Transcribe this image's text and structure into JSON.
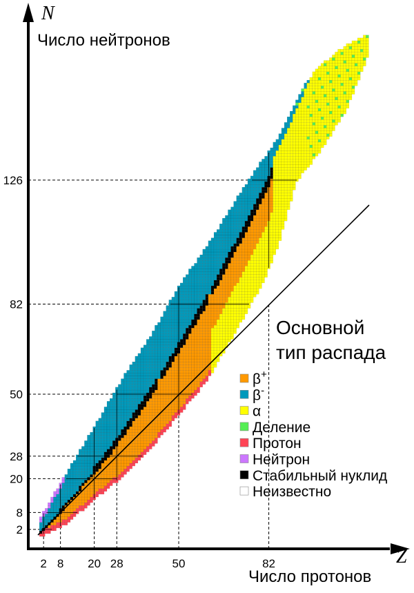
{
  "axes": {
    "y_symbol": "N",
    "y_label": "Число нейтронов",
    "x_symbol": "Z",
    "x_label": "Число протонов",
    "magic_numbers_z": [
      "2",
      "8",
      "20",
      "28",
      "50",
      "82"
    ],
    "magic_numbers_n": [
      "2",
      "8",
      "20",
      "28",
      "50",
      "82",
      "126"
    ]
  },
  "legend": {
    "title_line1": "Основной",
    "title_line2": "тип распада",
    "items": [
      {
        "label": "β",
        "sup": "+",
        "color": "#ff9900"
      },
      {
        "label": "β",
        "sup": "-",
        "color": "#0099bb"
      },
      {
        "label": "α",
        "sup": "",
        "color": "#ffff00"
      },
      {
        "label": "Деление",
        "sup": "",
        "color": "#55ee55"
      },
      {
        "label": "Протон",
        "sup": "",
        "color": "#ff4455"
      },
      {
        "label": "Нейтрон",
        "sup": "",
        "color": "#cc77ff"
      },
      {
        "label": "Стабильный нуклид",
        "sup": "",
        "color": "#000000"
      },
      {
        "label": "Неизвестно",
        "sup": "",
        "color": "#ffffff"
      }
    ]
  }
}
